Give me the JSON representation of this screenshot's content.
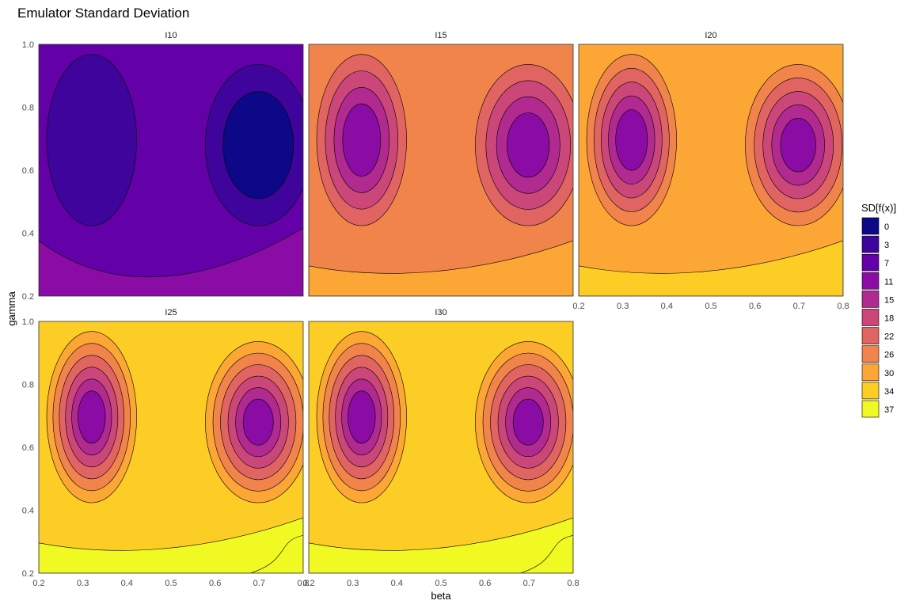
{
  "chart_data": {
    "type": "contour",
    "title": "Emulator Standard Deviation",
    "xlabel": "beta",
    "ylabel": "gamma",
    "xlim": [
      0.2,
      0.8
    ],
    "ylim": [
      0.2,
      1.0
    ],
    "x_ticks": [
      "0.2",
      "0.3",
      "0.4",
      "0.5",
      "0.6",
      "0.7",
      "0.8"
    ],
    "y_ticks": [
      "0.2",
      "0.4",
      "0.6",
      "0.8",
      "1.0"
    ],
    "legend": {
      "title": "SD[f(x)]",
      "position": "right",
      "levels": [
        {
          "label": "0",
          "value": 0,
          "color": "#0d0887"
        },
        {
          "label": "3",
          "value": 3,
          "color": "#3e049c"
        },
        {
          "label": "7",
          "value": 7,
          "color": "#6300a7"
        },
        {
          "label": "11",
          "value": 11,
          "color": "#8a0ca5"
        },
        {
          "label": "15",
          "value": 15,
          "color": "#b02a90"
        },
        {
          "label": "18",
          "value": 18,
          "color": "#cb4679"
        },
        {
          "label": "22",
          "value": 22,
          "color": "#e06461"
        },
        {
          "label": "26",
          "value": 26,
          "color": "#f1844b"
        },
        {
          "label": "30",
          "value": 30,
          "color": "#fca636"
        },
        {
          "label": "34",
          "value": 34,
          "color": "#fccd25"
        },
        {
          "label": "37",
          "value": 37,
          "color": "#f0f921"
        }
      ]
    },
    "panels": [
      {
        "label": "I10",
        "base_sd": 9,
        "background_level": 2,
        "peak_level": 0
      },
      {
        "label": "I15",
        "base_sd": 26,
        "background_level": 7,
        "peak_level": 3
      },
      {
        "label": "I20",
        "base_sd": 30,
        "background_level": 8,
        "peak_level": 3
      },
      {
        "label": "I25",
        "base_sd": 31,
        "background_level": 9,
        "peak_level": 3
      },
      {
        "label": "I30",
        "base_sd": 31,
        "background_level": 9,
        "peak_level": 3
      }
    ]
  }
}
